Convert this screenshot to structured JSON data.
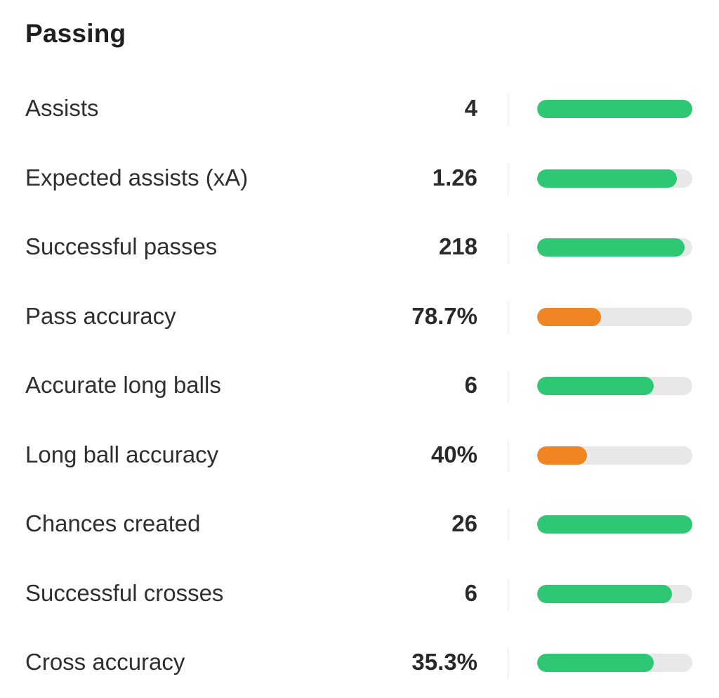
{
  "section": {
    "title": "Passing"
  },
  "colors": {
    "good": "#2ec874",
    "average": "#f08322",
    "track": "#e8e8e8"
  },
  "stats": [
    {
      "label": "Assists",
      "value": "4",
      "level": 1.0,
      "rating": "good"
    },
    {
      "label": "Expected assists (xA)",
      "value": "1.26",
      "level": 0.9,
      "rating": "good"
    },
    {
      "label": "Successful passes",
      "value": "218",
      "level": 0.95,
      "rating": "good"
    },
    {
      "label": "Pass accuracy",
      "value": "78.7%",
      "level": 0.41,
      "rating": "average"
    },
    {
      "label": "Accurate long balls",
      "value": "6",
      "level": 0.75,
      "rating": "good"
    },
    {
      "label": "Long ball accuracy",
      "value": "40%",
      "level": 0.32,
      "rating": "average"
    },
    {
      "label": "Chances created",
      "value": "26",
      "level": 1.0,
      "rating": "good"
    },
    {
      "label": "Successful crosses",
      "value": "6",
      "level": 0.87,
      "rating": "good"
    },
    {
      "label": "Cross accuracy",
      "value": "35.3%",
      "level": 0.75,
      "rating": "good"
    }
  ]
}
